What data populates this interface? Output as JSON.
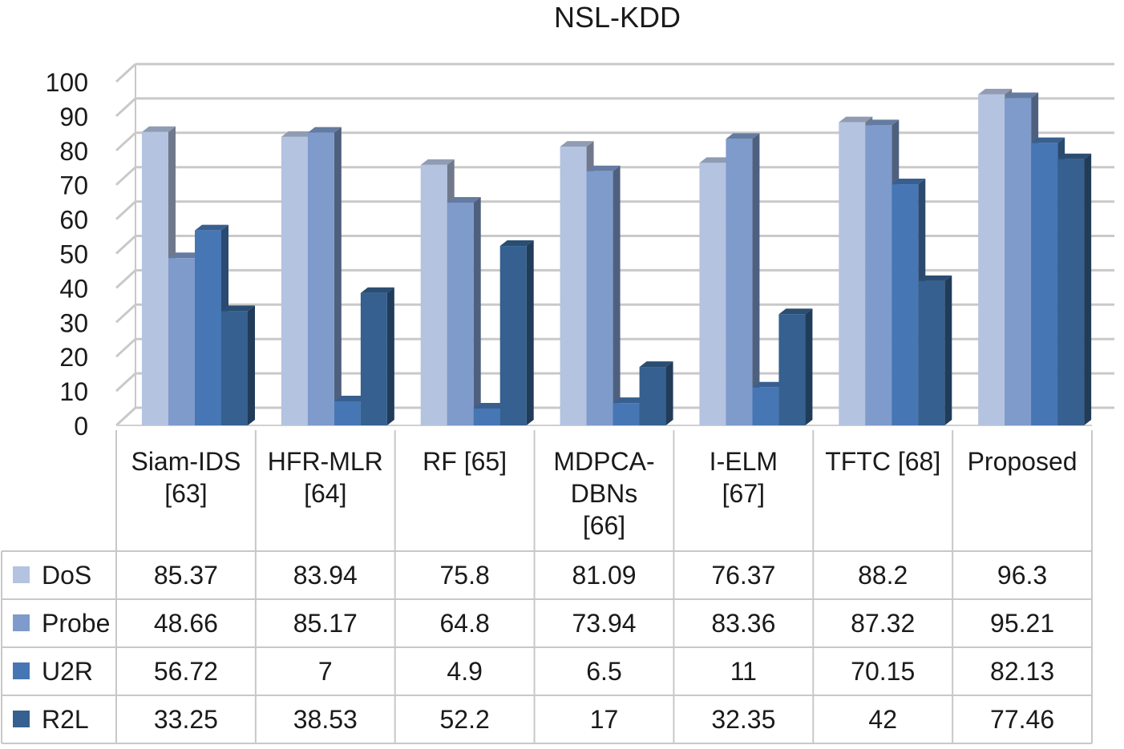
{
  "chart_data": {
    "type": "bar",
    "title": "NSL-KDD",
    "categories": [
      [
        "Siam-IDS",
        "[63]"
      ],
      [
        "HFR-MLR",
        "[64]"
      ],
      [
        "RF [65]"
      ],
      [
        "MDPCA-",
        "DBNs",
        "[66]"
      ],
      [
        "I-ELM",
        "[67]"
      ],
      [
        "TFTC [68]"
      ],
      [
        "Proposed"
      ]
    ],
    "series": [
      {
        "name": "DoS",
        "color": "#b4c3e0",
        "values": [
          85.37,
          83.94,
          75.8,
          81.09,
          76.37,
          88.2,
          96.3
        ]
      },
      {
        "name": "Probe",
        "color": "#7e9bcb",
        "values": [
          48.66,
          85.17,
          64.8,
          73.94,
          83.36,
          87.32,
          95.21
        ]
      },
      {
        "name": "U2R",
        "color": "#4677b4",
        "values": [
          56.72,
          7,
          4.9,
          6.5,
          11,
          70.15,
          82.13
        ]
      },
      {
        "name": "R2L",
        "color": "#35608f",
        "values": [
          33.25,
          38.53,
          52.2,
          17,
          32.35,
          42,
          77.46
        ]
      }
    ],
    "table_values": [
      [
        "85.37",
        "83.94",
        "75.8",
        "81.09",
        "76.37",
        "88.2",
        "96.3"
      ],
      [
        "48.66",
        "85.17",
        "64.8",
        "73.94",
        "83.36",
        "87.32",
        "95.21"
      ],
      [
        "56.72",
        "7",
        "4.9",
        "6.5",
        "11",
        "70.15",
        "82.13"
      ],
      [
        "33.25",
        "38.53",
        "52.2",
        "17",
        "32.35",
        "42",
        "77.46"
      ]
    ],
    "ylim": [
      0,
      100
    ],
    "yticks": [
      0,
      10,
      20,
      30,
      40,
      50,
      60,
      70,
      80,
      90,
      100
    ],
    "xlabel": "",
    "ylabel": "",
    "grid": true,
    "legend": "data-table"
  }
}
